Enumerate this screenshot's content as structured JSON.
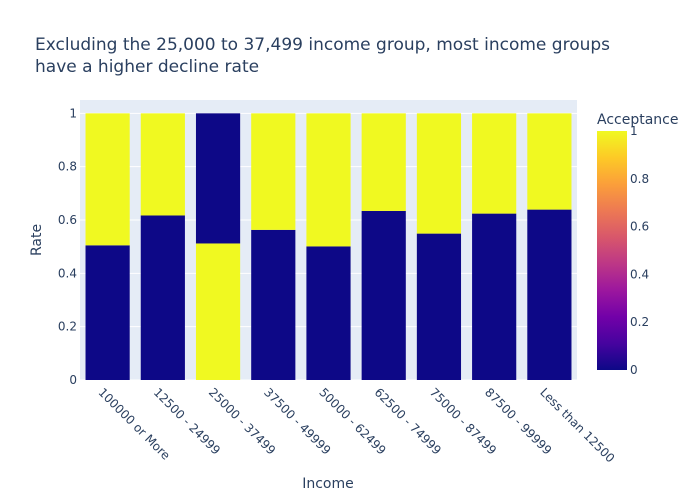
{
  "chart_data": {
    "type": "bar",
    "stacked": true,
    "title_lines": [
      "Excluding the 25,000 to 37,499 income group, most income groups",
      "have a higher decline rate"
    ],
    "xlabel": "Income",
    "ylabel": "Rate",
    "ylim": [
      0,
      1.05
    ],
    "y_ticks": [
      0,
      0.2,
      0.4,
      0.6,
      0.8,
      1
    ],
    "categories": [
      "100000 or More",
      "12500 - 24999",
      "25000 - 37499",
      "37500 - 49999",
      "50000 - 62499",
      "62500 - 74999",
      "75000 - 87499",
      "87500 - 99999",
      "Less than 12500"
    ],
    "series": [
      {
        "acceptance": 0,
        "values": [
          0.505,
          0.617,
          0.488,
          0.563,
          0.501,
          0.634,
          0.549,
          0.624,
          0.639
        ]
      },
      {
        "acceptance": 1,
        "values": [
          0.495,
          0.383,
          0.512,
          0.437,
          0.499,
          0.366,
          0.451,
          0.376,
          0.361
        ]
      }
    ],
    "stack_order": [
      [
        0,
        1
      ],
      [
        0,
        1
      ],
      [
        1,
        0
      ],
      [
        0,
        1
      ],
      [
        0,
        1
      ],
      [
        0,
        1
      ],
      [
        0,
        1
      ],
      [
        0,
        1
      ],
      [
        0,
        1
      ]
    ],
    "colorbar": {
      "title": "Acceptance",
      "ticks": [
        0,
        0.2,
        0.4,
        0.6,
        0.8,
        1
      ],
      "colors": [
        "#0d0887",
        "#46039f",
        "#7201a8",
        "#9c179e",
        "#bd3786",
        "#d8576b",
        "#ed7953",
        "#fb9f3a",
        "#fdca26",
        "#f0f921"
      ]
    },
    "grid": true
  }
}
